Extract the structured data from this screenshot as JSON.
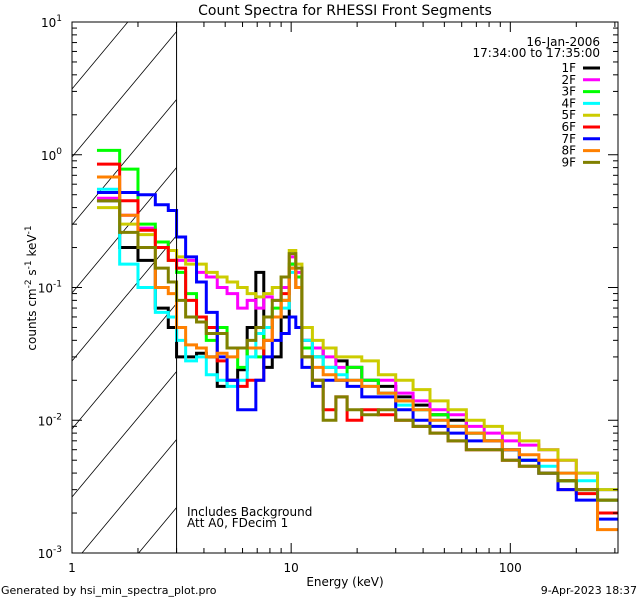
{
  "chart_data": {
    "type": "line",
    "title": "Count Spectra for RHESSI Front Segments",
    "xlabel": "Energy (keV)",
    "ylabel": {
      "base": "counts cm",
      "e1": "-2",
      "mid1": " s",
      "e2": "-1",
      "mid2": " keV",
      "e3": "-1"
    },
    "xscale": "log",
    "yscale": "log",
    "xlim": [
      1,
      310
    ],
    "ylim": [
      0.001,
      10
    ],
    "x_ticks": [
      {
        "value": 1,
        "label": "1"
      },
      {
        "value": 10,
        "label": "10"
      },
      {
        "value": 100,
        "label": "100"
      }
    ],
    "y_ticks": [
      {
        "value": 0.001,
        "base": "10",
        "exp": "-3"
      },
      {
        "value": 0.01,
        "base": "10",
        "exp": "-2"
      },
      {
        "value": 0.1,
        "base": "10",
        "exp": "-1"
      },
      {
        "value": 1,
        "base": "10",
        "exp": "0"
      },
      {
        "value": 10,
        "base": "10",
        "exp": "1"
      }
    ],
    "hatched_region_keV": [
      1,
      3
    ],
    "legend": {
      "placement": "top-right",
      "date": "16-Jan-2006",
      "time_range": "17:34:00 to 17:35:00"
    },
    "annotations": [
      "Includes Background",
      "Att A0, FDecim 1"
    ],
    "energy_edges_keV": [
      1.3,
      1.65,
      2.0,
      2.4,
      2.75,
      3.0,
      3.3,
      3.7,
      4.1,
      4.6,
      5.1,
      5.7,
      6.3,
      6.9,
      7.5,
      8.2,
      9.0,
      9.8,
      10.5,
      11.2,
      12.5,
      14,
      16,
      18,
      21,
      25,
      30,
      36,
      43,
      52,
      63,
      76,
      92,
      110,
      135,
      165,
      200,
      250,
      310
    ],
    "series": [
      {
        "name": "1F",
        "color": "#000000",
        "values": [
          0.45,
          0.2,
          0.16,
          0.07,
          0.05,
          0.03,
          0.03,
          0.032,
          0.03,
          0.018,
          0.02,
          0.024,
          0.05,
          0.13,
          0.025,
          0.03,
          0.06,
          0.15,
          0.12,
          0.04,
          0.03,
          0.035,
          0.028,
          0.025,
          0.02,
          0.018,
          0.015,
          0.013,
          0.011,
          0.01,
          0.008,
          0.007,
          0.006,
          0.005,
          0.004,
          0.0035,
          0.003,
          0.0025
        ]
      },
      {
        "name": "2F",
        "color": "#ff00ff",
        "values": [
          0.47,
          0.35,
          0.28,
          0.22,
          0.19,
          0.16,
          0.16,
          0.13,
          0.12,
          0.1,
          0.09,
          0.07,
          0.08,
          0.07,
          0.085,
          0.08,
          0.1,
          0.17,
          0.13,
          0.04,
          0.035,
          0.03,
          0.025,
          0.025,
          0.02,
          0.02,
          0.016,
          0.014,
          0.012,
          0.011,
          0.009,
          0.008,
          0.007,
          0.0065,
          0.006,
          0.005,
          0.004,
          0.003
        ]
      },
      {
        "name": "3F",
        "color": "#00ff00",
        "values": [
          1.08,
          0.78,
          0.3,
          0.22,
          0.16,
          0.13,
          0.09,
          0.06,
          0.04,
          0.05,
          0.035,
          0.025,
          0.035,
          0.03,
          0.05,
          0.07,
          0.08,
          0.15,
          0.12,
          0.035,
          0.03,
          0.025,
          0.02,
          0.025,
          0.02,
          0.016,
          0.014,
          0.012,
          0.011,
          0.009,
          0.008,
          0.007,
          0.006,
          0.005,
          0.004,
          0.0035,
          0.003,
          0.0025
        ]
      },
      {
        "name": "4F",
        "color": "#00ffff",
        "values": [
          0.55,
          0.15,
          0.1,
          0.065,
          0.06,
          0.04,
          0.028,
          0.03,
          0.022,
          0.02,
          0.018,
          0.02,
          0.03,
          0.045,
          0.05,
          0.06,
          0.07,
          0.13,
          0.1,
          0.04,
          0.03,
          0.025,
          0.022,
          0.02,
          0.018,
          0.016,
          0.013,
          0.012,
          0.01,
          0.009,
          0.008,
          0.007,
          0.006,
          0.005,
          0.0045,
          0.004,
          0.0035,
          0.003
        ]
      },
      {
        "name": "5F",
        "color": "#cccc00",
        "values": [
          0.4,
          0.3,
          0.25,
          0.2,
          0.19,
          0.17,
          0.15,
          0.15,
          0.13,
          0.12,
          0.11,
          0.1,
          0.09,
          0.085,
          0.09,
          0.1,
          0.12,
          0.19,
          0.15,
          0.05,
          0.04,
          0.035,
          0.03,
          0.03,
          0.028,
          0.022,
          0.02,
          0.017,
          0.014,
          0.012,
          0.01,
          0.009,
          0.008,
          0.007,
          0.006,
          0.005,
          0.004,
          0.003
        ]
      },
      {
        "name": "6F",
        "color": "#ff0000",
        "values": [
          0.85,
          0.45,
          0.27,
          0.2,
          0.16,
          0.14,
          0.08,
          0.06,
          0.05,
          0.028,
          0.02,
          0.018,
          0.02,
          0.02,
          0.04,
          0.06,
          0.09,
          0.14,
          0.1,
          0.03,
          0.02,
          0.012,
          0.015,
          0.01,
          0.012,
          0.011,
          0.01,
          0.009,
          0.008,
          0.007,
          0.006,
          0.006,
          0.005,
          0.0045,
          0.004,
          0.003,
          0.0028,
          0.002
        ]
      },
      {
        "name": "7F",
        "color": "#0000ff",
        "values": [
          0.52,
          0.52,
          0.5,
          0.42,
          0.38,
          0.24,
          0.17,
          0.11,
          0.065,
          0.03,
          0.02,
          0.012,
          0.012,
          0.02,
          0.03,
          0.04,
          0.045,
          0.06,
          0.05,
          0.025,
          0.018,
          0.02,
          0.02,
          0.018,
          0.015,
          0.015,
          0.012,
          0.01,
          0.009,
          0.008,
          0.007,
          0.007,
          0.006,
          0.005,
          0.004,
          0.003,
          0.0025,
          0.0018
        ]
      },
      {
        "name": "8F",
        "color": "#ff8000",
        "values": [
          0.68,
          0.35,
          0.2,
          0.1,
          0.09,
          0.05,
          0.037,
          0.035,
          0.03,
          0.032,
          0.03,
          0.035,
          0.035,
          0.035,
          0.04,
          0.06,
          0.08,
          0.14,
          0.1,
          0.03,
          0.025,
          0.022,
          0.02,
          0.02,
          0.018,
          0.016,
          0.014,
          0.012,
          0.01,
          0.009,
          0.008,
          0.007,
          0.006,
          0.0055,
          0.005,
          0.004,
          0.003,
          0.0015
        ]
      },
      {
        "name": "9F",
        "color": "#808000",
        "values": [
          0.45,
          0.26,
          0.2,
          0.14,
          0.11,
          0.08,
          0.06,
          0.055,
          0.045,
          0.045,
          0.035,
          0.035,
          0.04,
          0.05,
          0.06,
          0.08,
          0.12,
          0.18,
          0.14,
          0.03,
          0.02,
          0.01,
          0.015,
          0.012,
          0.011,
          0.012,
          0.01,
          0.009,
          0.008,
          0.007,
          0.006,
          0.006,
          0.005,
          0.0045,
          0.004,
          0.0035,
          0.003,
          0.0025
        ]
      }
    ]
  },
  "footer": {
    "left": "Generated by hsi_min_spectra_plot.pro",
    "right": "9-Apr-2023 18:37"
  }
}
